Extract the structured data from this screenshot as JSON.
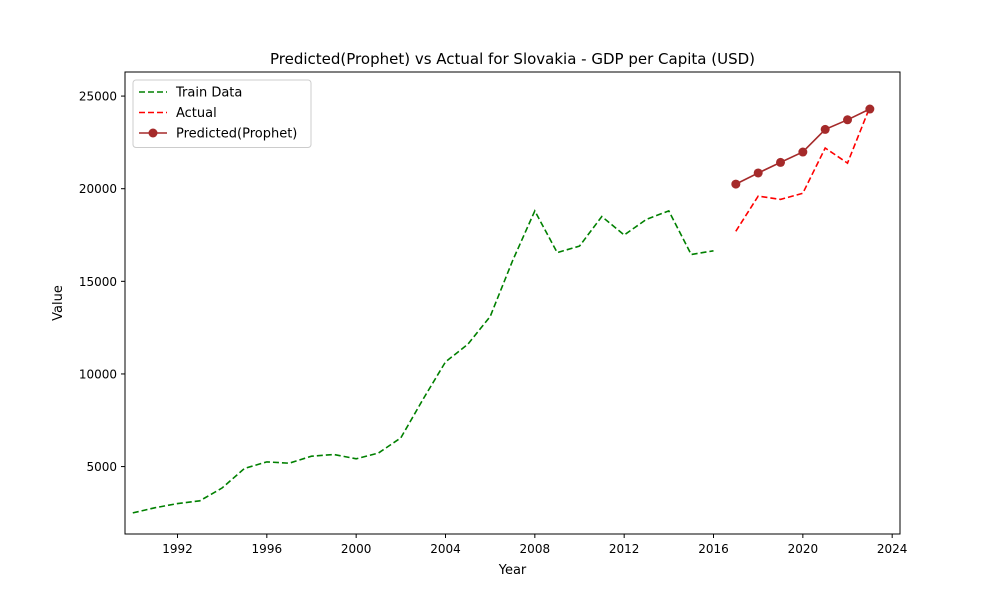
{
  "chart_data": {
    "type": "line",
    "title": "Predicted(Prophet) vs Actual for Slovakia - GDP per Capita (USD)",
    "xlabel": "Year",
    "ylabel": "Value",
    "xlim": [
      1989.65,
      2024.35
    ],
    "ylim": [
      1360,
      26300
    ],
    "x_ticks": [
      1992,
      1996,
      2000,
      2004,
      2008,
      2012,
      2016,
      2020,
      2024
    ],
    "y_ticks": [
      5000,
      10000,
      15000,
      20000,
      25000
    ],
    "grid": false,
    "legend_position": "upper-left",
    "series": [
      {
        "name": "Train Data",
        "style": "dashed",
        "marker": "none",
        "color": "#008000",
        "x": [
          1990,
          1991,
          1992,
          1993,
          1994,
          1995,
          1996,
          1997,
          1998,
          1999,
          2000,
          2001,
          2002,
          2003,
          2004,
          2005,
          2006,
          2007,
          2008,
          2009,
          2010,
          2011,
          2012,
          2013,
          2014,
          2015,
          2016
        ],
        "y": [
          2500,
          2780,
          3000,
          3150,
          3850,
          4900,
          5250,
          5180,
          5560,
          5650,
          5420,
          5730,
          6550,
          8650,
          10650,
          11600,
          13100,
          16100,
          18800,
          16550,
          16900,
          18500,
          17500,
          18350,
          18800,
          16450,
          16650
        ]
      },
      {
        "name": "Actual",
        "style": "dashed",
        "marker": "none",
        "color": "#ff0000",
        "x": [
          2017,
          2018,
          2019,
          2020,
          2021,
          2022,
          2023
        ],
        "y": [
          17700,
          19600,
          19420,
          19750,
          22200,
          21380,
          24400
        ]
      },
      {
        "name": "Predicted(Prophet)",
        "style": "solid",
        "marker": "circle",
        "color": "#a52a2a",
        "x": [
          2017,
          2018,
          2019,
          2020,
          2021,
          2022,
          2023
        ],
        "y": [
          20250,
          20850,
          21420,
          21980,
          23200,
          23720,
          24300
        ]
      }
    ]
  }
}
